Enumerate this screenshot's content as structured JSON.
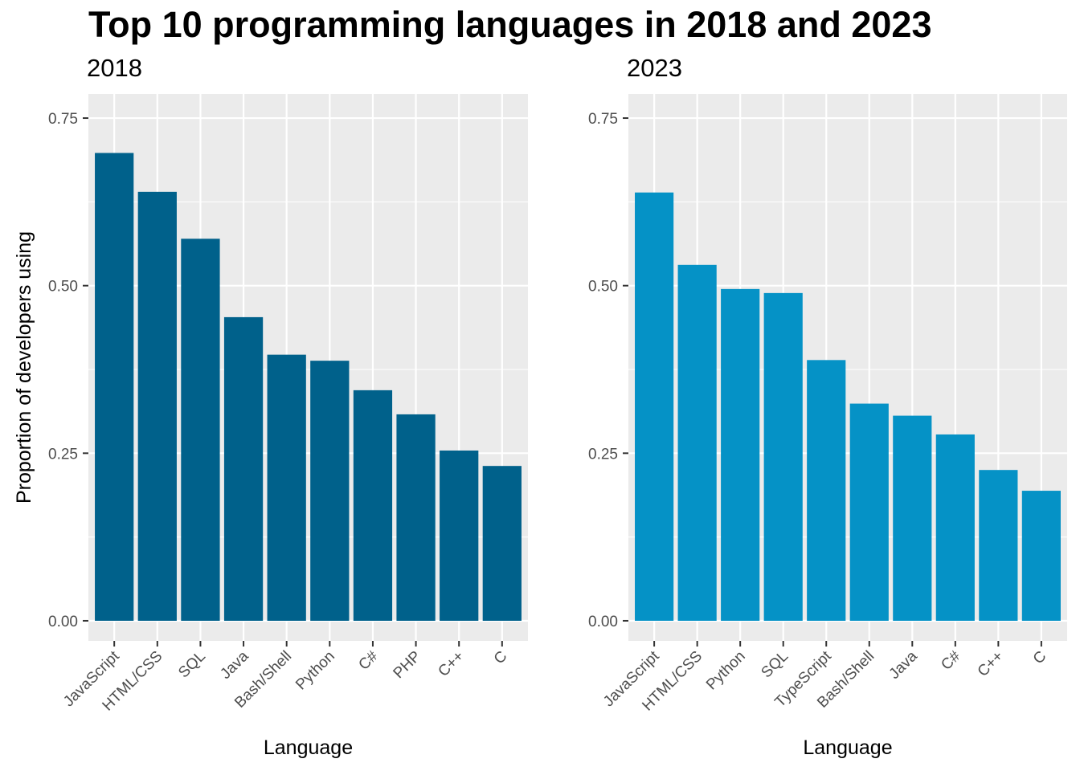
{
  "title": "Top 10 programming languages in 2018 and 2023",
  "colors": {
    "panel_bg": "#EBEBEB",
    "grid": "#FFFFFF",
    "bar_2018": "#00618B",
    "bar_2023": "#0592C6",
    "tick_text": "#4D4D4D"
  },
  "chart_data": [
    {
      "type": "bar",
      "title": "2018",
      "xlabel": "Language",
      "ylabel": "Proportion of developers using",
      "ylim": [
        -0.03,
        0.786
      ],
      "yticks": [
        0,
        0.25,
        0.5,
        0.75
      ],
      "ytick_labels": [
        "0.00",
        "0.25",
        "0.50",
        "0.75"
      ],
      "grid": true,
      "categories": [
        "JavaScript",
        "HTML/CSS",
        "SQL",
        "Java",
        "Bash/Shell",
        "Python",
        "C#",
        "PHP",
        "C++",
        "C"
      ],
      "values": [
        0.698,
        0.64,
        0.57,
        0.453,
        0.397,
        0.388,
        0.344,
        0.308,
        0.254,
        0.231
      ]
    },
    {
      "type": "bar",
      "title": "2023",
      "xlabel": "Language",
      "ylabel": "",
      "ylim": [
        -0.03,
        0.786
      ],
      "yticks": [
        0,
        0.25,
        0.5,
        0.75
      ],
      "ytick_labels": [
        "0.00",
        "0.25",
        "0.50",
        "0.75"
      ],
      "grid": true,
      "categories": [
        "JavaScript",
        "HTML/CSS",
        "Python",
        "SQL",
        "TypeScript",
        "Bash/Shell",
        "Java",
        "C#",
        "C++",
        "C"
      ],
      "values": [
        0.639,
        0.531,
        0.495,
        0.489,
        0.389,
        0.324,
        0.306,
        0.278,
        0.225,
        0.194
      ]
    }
  ]
}
